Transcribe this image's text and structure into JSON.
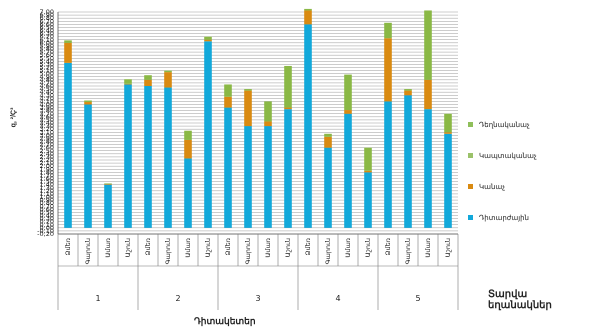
{
  "chart_data": {
    "type": "bar",
    "stacked": true,
    "ylabel": "q, ²/Ç³",
    "xlabel": "Դիտակետեր",
    "side_title": "Տարվա եղանակներ",
    "ylim": [
      -0.2,
      7.0
    ],
    "yticks": [
      "-0,20",
      "-0,10",
      "0,00",
      "0,10",
      "0,20",
      "0,30",
      "0,40",
      "0,50",
      "0,60",
      "0,70",
      "0,80",
      "0,90",
      "1,00",
      "1,10",
      "1,20",
      "1,30",
      "1,40",
      "1,50",
      "1,60",
      "1,70",
      "1,80",
      "1,90",
      "2,00",
      "2,10",
      "2,20",
      "2,30",
      "2,40",
      "2,50",
      "2,60",
      "2,70",
      "2,80",
      "2,90",
      "3,00",
      "3,10",
      "3,20",
      "3,30",
      "3,40",
      "3,50",
      "3,60",
      "3,70",
      "3,80",
      "3,90",
      "4,00",
      "4,10",
      "4,20",
      "4,30",
      "4,40",
      "4,50",
      "4,60",
      "4,70",
      "4,80",
      "4,90",
      "5,00",
      "5,10",
      "5,20",
      "5,30",
      "5,40",
      "5,50",
      "5,60",
      "5,70",
      "5,80",
      "5,90",
      "6,00",
      "6,10",
      "6,20",
      "6,30",
      "6,40",
      "6,50",
      "6,60",
      "6,70",
      "6,80",
      "6,90",
      "7,00"
    ],
    "groups": [
      "1",
      "2",
      "3",
      "4",
      "5"
    ],
    "categories": [
      "Ձմեռ",
      "Գարուն",
      "Ամառ",
      "Աշուն",
      "Ձմեռ",
      "Գարուն",
      "Ամառ",
      "Աշուն",
      "Ձմեռ",
      "Գարուն",
      "Ամառ",
      "Աշուն",
      "Ձմեռ",
      "Գարուն",
      "Ամառ",
      "Աշուն",
      "Ձմեռ",
      "Գարուն",
      "Ամառ",
      "Աշուն"
    ],
    "series": [
      {
        "name": "Դիտարժային",
        "color": "#12a8da",
        "values": [
          5.35,
          4.0,
          1.4,
          4.65,
          4.6,
          4.55,
          2.25,
          6.05,
          3.9,
          3.3,
          3.3,
          3.85,
          6.6,
          2.6,
          3.7,
          1.8,
          4.1,
          4.3,
          3.85,
          3.05
        ]
      },
      {
        "name": "Կանաչ",
        "color": "#d98a11",
        "values": [
          0.65,
          0.08,
          0.02,
          0.02,
          0.2,
          0.5,
          0.6,
          0.05,
          0.35,
          1.15,
          0.15,
          0.05,
          0.45,
          0.35,
          0.12,
          0.05,
          2.05,
          0.15,
          0.95,
          0.05
        ]
      },
      {
        "name": "Կապտականաչ",
        "color": "#8ab845",
        "values": [
          0.08,
          0.05,
          0.02,
          0.15,
          0.15,
          0.05,
          0.3,
          0.1,
          0.4,
          0.05,
          0.65,
          1.35,
          0.05,
          0.1,
          1.15,
          0.75,
          0.5,
          0.05,
          2.25,
          0.6
        ]
      }
    ],
    "legend_order": [
      "Դեղնականաչ",
      "Կապտականաչ",
      "Կանաչ",
      "Դիտարժային"
    ],
    "legend_colors": [
      "#8fbf5a",
      "#9bc26a",
      "#d98a11",
      "#12a8da"
    ],
    "legend_position": "right",
    "grid": true
  }
}
